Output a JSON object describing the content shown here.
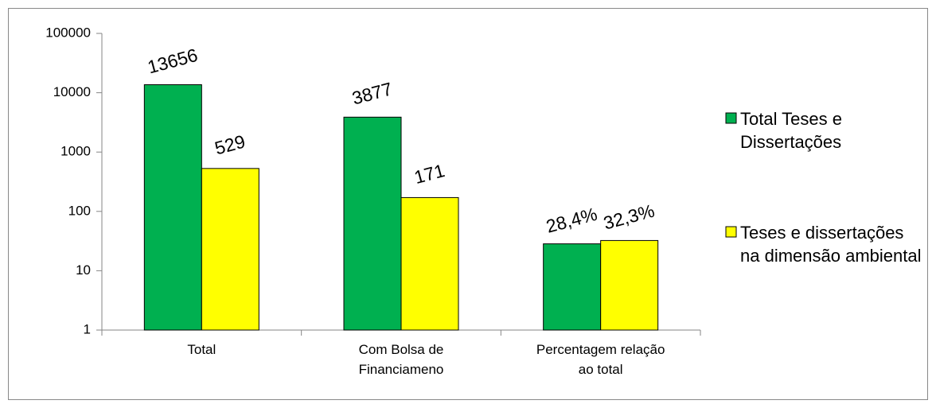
{
  "chart_data": {
    "type": "bar",
    "categories": [
      "Total",
      "Com Bolsa de Financiameno",
      "Percentagem relação ao total"
    ],
    "series": [
      {
        "name": "Total Teses e Dissertações",
        "color": "#00b050",
        "values": [
          13656,
          3877,
          28.4
        ],
        "value_labels": [
          "13656",
          "3877",
          "28,4%"
        ]
      },
      {
        "name": "Teses e dissertações na dimensão ambiental",
        "color": "#ffff00",
        "values": [
          529,
          171,
          32.3
        ],
        "value_labels": [
          "529",
          "171",
          "32,3%"
        ]
      }
    ],
    "ylim": [
      1,
      100000
    ],
    "yticks": [
      1,
      10,
      100,
      1000,
      10000,
      100000
    ],
    "log_scale": true,
    "grid": false,
    "legend": "right"
  }
}
